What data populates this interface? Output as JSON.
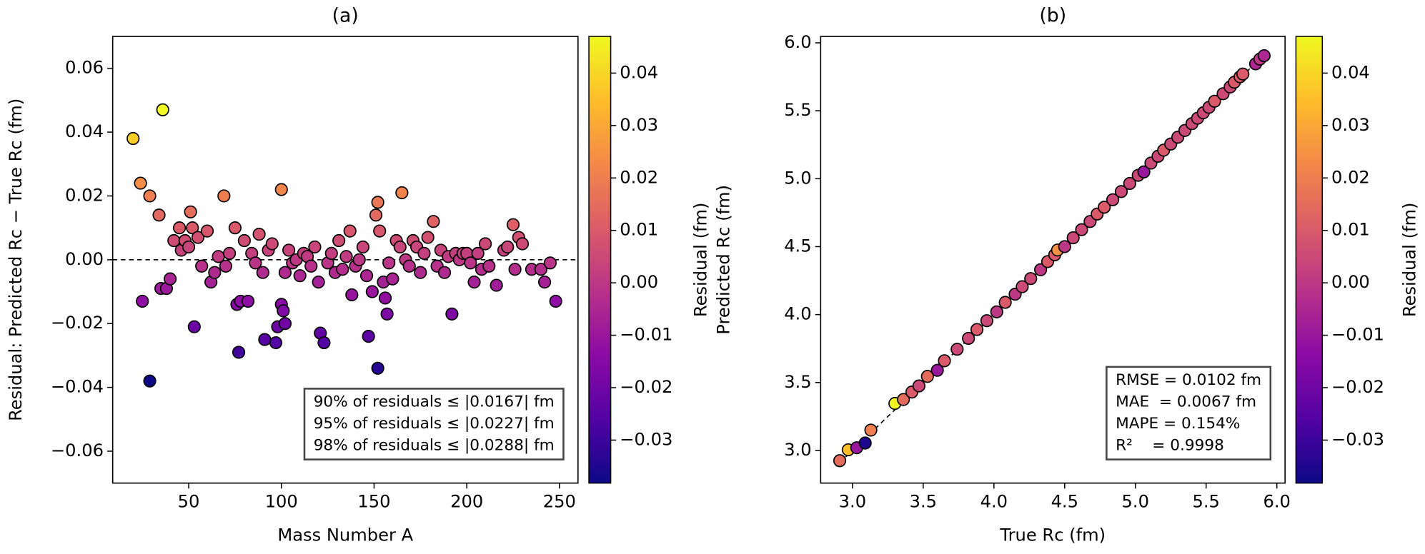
{
  "chart_data": [
    {
      "type": "scatter",
      "title": "(a)",
      "x_label": "Mass Number A",
      "y_label": "Residual: Predicted Rc − True Rc (fm)",
      "x": [
        20,
        36,
        24,
        29,
        34,
        25,
        29,
        35,
        38,
        40,
        42,
        45,
        46,
        48,
        50,
        51,
        52,
        53,
        55,
        57,
        60,
        62,
        64,
        66,
        69,
        70,
        72,
        75,
        76,
        77,
        78,
        80,
        82,
        84,
        86,
        88,
        90,
        91,
        93,
        95,
        97,
        98,
        100,
        100,
        101,
        102,
        102,
        104,
        106,
        108,
        110,
        112,
        114,
        116,
        118,
        120,
        121,
        123,
        125,
        127,
        129,
        131,
        133,
        135,
        137,
        138,
        140,
        142,
        144,
        146,
        147,
        149,
        151,
        152,
        152,
        153,
        155,
        156,
        157,
        158,
        160,
        162,
        164,
        165,
        167,
        169,
        171,
        173,
        175,
        177,
        179,
        182,
        184,
        186,
        188,
        190,
        192,
        194,
        196,
        198,
        200,
        202,
        204,
        206,
        208,
        210,
        212,
        216,
        220,
        222,
        225,
        226,
        228,
        230,
        235,
        240,
        242,
        245,
        248
      ],
      "values": [
        0.038,
        0.047,
        0.024,
        0.02,
        0.014,
        -0.013,
        -0.038,
        -0.009,
        -0.009,
        -0.006,
        0.006,
        0.01,
        0.003,
        0.006,
        0.004,
        0.015,
        0.01,
        -0.021,
        0.007,
        -0.002,
        0.009,
        -0.007,
        -0.004,
        0.001,
        0.02,
        -0.002,
        0.002,
        0.01,
        -0.014,
        -0.029,
        -0.013,
        0.006,
        -0.013,
        0.002,
        -0.001,
        0.008,
        -0.004,
        -0.025,
        0.003,
        0.005,
        -0.026,
        -0.021,
        0.022,
        -0.014,
        -0.016,
        -0.004,
        -0.02,
        0.003,
        -0.001,
        0.0,
        -0.005,
        0.002,
        0.001,
        -0.002,
        0.004,
        -0.007,
        -0.023,
        -0.026,
        -0.001,
        0.002,
        -0.004,
        0.006,
        -0.003,
        0.001,
        0.009,
        -0.011,
        -0.002,
        0.0,
        0.004,
        -0.005,
        -0.024,
        -0.01,
        0.014,
        0.018,
        -0.034,
        0.009,
        -0.007,
        -0.012,
        -0.017,
        -0.001,
        -0.006,
        0.006,
        0.004,
        0.021,
        0.0,
        -0.002,
        0.006,
        0.004,
        -0.004,
        0.002,
        0.007,
        0.012,
        -0.002,
        0.003,
        -0.004,
        0.001,
        -0.017,
        0.002,
        0.0,
        0.002,
        0.002,
        -0.001,
        -0.007,
        0.002,
        -0.003,
        0.005,
        -0.002,
        -0.008,
        0.003,
        0.004,
        0.011,
        -0.003,
        0.007,
        0.005,
        -0.003,
        -0.003,
        -0.007,
        -0.001,
        -0.013
      ],
      "color_by": "y",
      "xlim": [
        9,
        260
      ],
      "ylim": [
        -0.07,
        0.07
      ],
      "xticks": [
        50,
        100,
        150,
        200,
        250
      ],
      "yticks": [
        {
          "value": -0.06,
          "label": "−0.06"
        },
        {
          "value": -0.04,
          "label": "−0.04"
        },
        {
          "value": -0.02,
          "label": "−0.02"
        },
        {
          "value": 0,
          "label": "0.00"
        },
        0.02,
        0.04,
        0.06
      ],
      "hline": 0,
      "annotations": [
        "90% of residuals ≤ |0.0167| fm",
        "95% of residuals ≤ |0.0227| fm",
        "98% of residuals ≤ |0.0288| fm"
      ],
      "colorbar": {
        "label": "Residual (fm)",
        "cmap": "plasma",
        "clim": [
          -0.0382,
          0.047
        ],
        "ticks": [
          {
            "value": -0.03,
            "label": "−0.03"
          },
          {
            "value": -0.02,
            "label": "−0.02"
          },
          {
            "value": -0.01,
            "label": "−0.01"
          },
          {
            "value": 0,
            "label": "0.00"
          },
          0.01,
          0.02,
          0.03,
          0.04
        ]
      }
    },
    {
      "type": "scatter",
      "title": "(b)",
      "x_label": "True Rc (fm)",
      "y_label": "Predicted Rc (fm)",
      "x": [
        2.91,
        2.97,
        3.03,
        3.09,
        3.13,
        3.3,
        3.36,
        3.42,
        3.47,
        3.53,
        3.6,
        3.65,
        3.74,
        3.82,
        3.88,
        3.95,
        4.02,
        4.08,
        4.15,
        4.2,
        4.26,
        4.33,
        4.38,
        4.43,
        4.45,
        4.5,
        4.56,
        4.62,
        4.68,
        4.73,
        4.78,
        4.84,
        4.9,
        4.96,
        5.02,
        5.06,
        5.11,
        5.16,
        5.2,
        5.25,
        5.3,
        5.35,
        5.4,
        5.44,
        5.48,
        5.52,
        5.56,
        5.62,
        5.67,
        5.7,
        5.74,
        5.76,
        5.85,
        5.88,
        5.91
      ],
      "values": [
        2.925,
        3.005,
        3.02,
        3.055,
        3.15,
        3.346,
        3.375,
        3.43,
        3.475,
        3.545,
        3.59,
        3.66,
        3.745,
        3.825,
        3.89,
        3.955,
        4.02,
        4.09,
        4.15,
        4.205,
        4.265,
        4.33,
        4.39,
        4.44,
        4.475,
        4.5,
        4.565,
        4.625,
        4.685,
        4.74,
        4.79,
        4.845,
        4.905,
        4.965,
        5.025,
        5.05,
        5.115,
        5.165,
        5.21,
        5.255,
        5.305,
        5.355,
        5.405,
        5.445,
        5.485,
        5.525,
        5.57,
        5.625,
        5.675,
        5.71,
        5.75,
        5.77,
        5.845,
        5.88,
        5.905
      ],
      "color_by": "residual",
      "xlim": [
        2.775,
        6.058
      ],
      "ylim": [
        2.76,
        6.047
      ],
      "xticks": [
        {
          "value": 3,
          "label": "3.0"
        },
        3.5,
        {
          "value": 4,
          "label": "4.0"
        },
        4.5,
        {
          "value": 5,
          "label": "5.0"
        },
        5.5,
        {
          "value": 6,
          "label": "6.0"
        }
      ],
      "yticks": [
        {
          "value": 3,
          "label": "3.0"
        },
        3.5,
        {
          "value": 4,
          "label": "4.0"
        },
        4.5,
        {
          "value": 5,
          "label": "5.0"
        },
        5.5,
        {
          "value": 6,
          "label": "6.0"
        }
      ],
      "identity_line": true,
      "annotations": [
        "RMSE = 0.0102 fm",
        "MAE  = 0.0067 fm",
        "MAPE = 0.154%",
        "R²    = 0.9998"
      ],
      "colorbar": {
        "label": "Residual (fm)",
        "cmap": "plasma",
        "clim": [
          -0.0382,
          0.047
        ],
        "ticks": [
          {
            "value": -0.03,
            "label": "−0.03"
          },
          {
            "value": -0.02,
            "label": "−0.02"
          },
          {
            "value": -0.01,
            "label": "−0.01"
          },
          {
            "value": 0,
            "label": "0.00"
          },
          0.01,
          0.02,
          0.03,
          0.04
        ]
      }
    }
  ]
}
